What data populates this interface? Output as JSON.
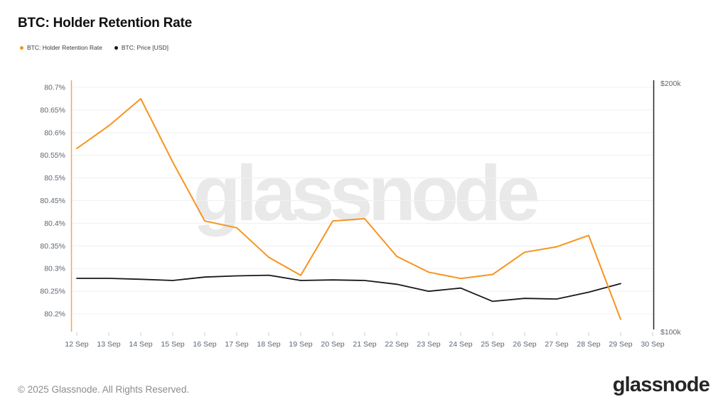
{
  "header": {
    "title": "BTC: Holder Retention Rate"
  },
  "legend": [
    {
      "label": "BTC: Holder Retention Rate",
      "color": "#f7941d"
    },
    {
      "label": "BTC: Price [USD]",
      "color": "#16181d"
    }
  ],
  "watermark": "glassnode",
  "footer": {
    "copyright": "© 2025 Glassnode. All Rights Reserved.",
    "logo": "glassnode"
  },
  "chart_data": {
    "type": "line",
    "title": "BTC: Holder Retention Rate",
    "grid": true,
    "legend_position": "top-left",
    "x_labels": [
      "12 Sep",
      "13 Sep",
      "14 Sep",
      "15 Sep",
      "16 Sep",
      "17 Sep",
      "18 Sep",
      "19 Sep",
      "20 Sep",
      "21 Sep",
      "22 Sep",
      "23 Sep",
      "24 Sep",
      "25 Sep",
      "26 Sep",
      "27 Sep",
      "28 Sep",
      "29 Sep",
      "30 Sep"
    ],
    "left_axis": {
      "unit": "%",
      "scale": "linear",
      "min": 80.2,
      "max": 80.7,
      "tick_labels": [
        "80.7%",
        "80.65%",
        "80.6%",
        "80.55%",
        "80.5%",
        "80.45%",
        "80.4%",
        "80.35%",
        "80.3%",
        "80.25%",
        "80.2%"
      ]
    },
    "right_axis": {
      "unit": "USD",
      "scale": "log",
      "min_usd": 100000,
      "max_usd": 200000,
      "tick_labels": [
        "$200k",
        "$100k"
      ]
    },
    "series": [
      {
        "name": "BTC: Price [USD]",
        "axis": "right",
        "color": "#16181d",
        "unit": "USD thousands",
        "values": [
          116.2,
          116.2,
          115.9,
          115.5,
          116.6,
          117.0,
          117.2,
          115.5,
          115.7,
          115.5,
          114.3,
          112.1,
          113.1,
          109.0,
          109.9,
          109.7,
          111.8,
          114.5
        ]
      },
      {
        "name": "BTC: Holder Retention Rate",
        "axis": "left",
        "color": "#f7941d",
        "unit": "%",
        "values": [
          80.565,
          80.615,
          80.675,
          80.535,
          80.405,
          80.39,
          80.325,
          80.285,
          80.405,
          80.41,
          80.327,
          80.292,
          80.278,
          80.287,
          80.336,
          80.348,
          80.373,
          80.188
        ]
      }
    ],
    "style": {
      "grid_color": "#f0f0f0",
      "tick_color": "#5d6670",
      "left_axis_color": "#f9a64a",
      "right_axis_color": "#22262b",
      "x_tick_color": "#c9ced4",
      "watermark_color": "#e9e9e9"
    }
  }
}
